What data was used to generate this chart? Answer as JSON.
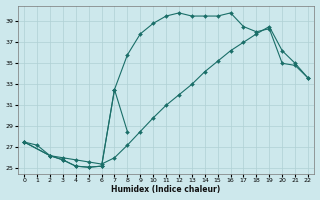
{
  "xlabel": "Humidex (Indice chaleur)",
  "bg_color": "#cde8ec",
  "grid_color": "#b0d0d4",
  "line_color": "#1a6e68",
  "xlim": [
    -0.5,
    22.5
  ],
  "ylim": [
    24.5,
    40.5
  ],
  "xticks": [
    0,
    1,
    2,
    3,
    4,
    5,
    6,
    7,
    8,
    9,
    10,
    11,
    12,
    13,
    14,
    15,
    16,
    17,
    18,
    19,
    20,
    21,
    22
  ],
  "yticks": [
    25,
    27,
    29,
    31,
    33,
    35,
    37,
    39
  ],
  "curve_top_x": [
    0,
    2,
    3,
    4,
    5,
    6,
    7,
    8,
    9,
    10,
    11,
    12,
    13,
    14,
    15,
    16,
    17,
    18,
    19,
    20,
    21,
    22
  ],
  "curve_top_y": [
    27.5,
    26.2,
    25.8,
    25.2,
    25.1,
    25.2,
    32.5,
    35.8,
    37.8,
    38.8,
    39.5,
    39.8,
    39.5,
    39.5,
    39.5,
    39.8,
    38.5,
    38.0,
    38.3,
    35.0,
    34.8,
    33.6
  ],
  "curve_mid_x": [
    0,
    2,
    3,
    4,
    5,
    6,
    7,
    8,
    9,
    10,
    11,
    12,
    13,
    14,
    15,
    16,
    17,
    18,
    19,
    20,
    21,
    22
  ],
  "curve_mid_y": [
    27.5,
    26.2,
    26.0,
    25.8,
    25.6,
    25.4,
    26.0,
    27.2,
    28.5,
    29.8,
    31.0,
    32.0,
    33.0,
    34.2,
    35.2,
    36.2,
    37.0,
    37.8,
    38.5,
    36.2,
    35.0,
    33.6
  ],
  "curve_low_x": [
    0,
    1,
    2,
    3,
    4,
    5,
    6,
    7,
    8
  ],
  "curve_low_y": [
    27.5,
    27.2,
    26.2,
    25.8,
    25.2,
    25.1,
    25.2,
    32.5,
    28.5
  ]
}
